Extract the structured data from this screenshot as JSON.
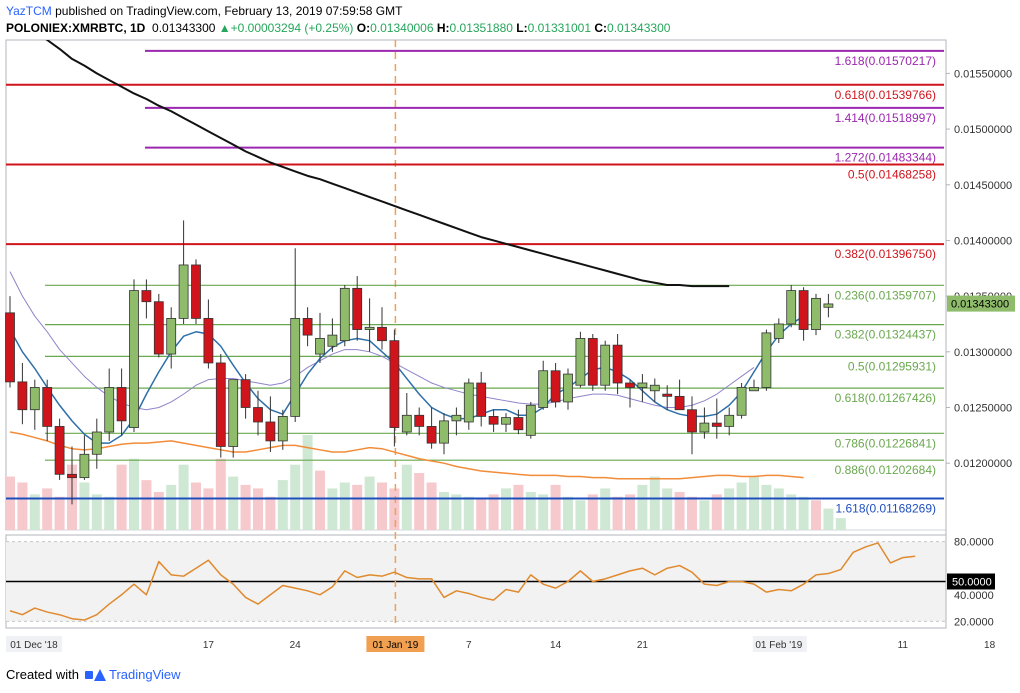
{
  "header": {
    "author": "YazTCM",
    "published": " published on TradingView.com, February 13, 2019 07:59:58 GMT",
    "symbol": "POLONIEX:XMRBTC, 1D",
    "last": "0.01343300",
    "change": "▲+0.00003294 (+0.25%)",
    "o_label": "O:",
    "o_value": "0.01340006",
    "h_label": "H:",
    "h_value": "0.01351880",
    "l_label": "L:",
    "l_value": "0.01331001",
    "c_label": "C:",
    "c_value": "0.01343300"
  },
  "footer": {
    "created_with": "Created with",
    "brand": "TradingView"
  },
  "chart_data": [
    {
      "type": "candlestick",
      "colors": {
        "up": "#8fbc6a",
        "down": "#d0141c",
        "price_line": "#8fbc6a"
      },
      "ylim": [
        0.0114,
        0.0158
      ],
      "y_ticks": [
        "0.01550000",
        "0.01500000",
        "0.01450000",
        "0.01400000",
        "0.01350000",
        "0.01300000",
        "0.01250000",
        "0.01200000"
      ],
      "current_price_label": "0.01343300",
      "x_ticks": [
        {
          "label": "01 Dec '18",
          "day": 0
        },
        {
          "label": "17",
          "day": 16
        },
        {
          "label": "24",
          "day": 23
        },
        {
          "label": "01 Jan '19",
          "day": 31
        },
        {
          "label": "7",
          "day": 37
        },
        {
          "label": "14",
          "day": 44
        },
        {
          "label": "21",
          "day": 51
        },
        {
          "label": "01 Feb '19",
          "day": 62
        },
        {
          "label": "11",
          "day": 72
        },
        {
          "label": "18",
          "day": 79
        }
      ],
      "candles": [
        {
          "d": 0,
          "o": 0.01335,
          "h": 0.0135,
          "l": 0.01268,
          "c": 0.01273
        },
        {
          "d": 1,
          "o": 0.01273,
          "h": 0.0129,
          "l": 0.01235,
          "c": 0.01248
        },
        {
          "d": 2,
          "o": 0.01248,
          "h": 0.01275,
          "l": 0.0123,
          "c": 0.01268
        },
        {
          "d": 3,
          "o": 0.01268,
          "h": 0.01275,
          "l": 0.0122,
          "c": 0.01233
        },
        {
          "d": 4,
          "o": 0.01233,
          "h": 0.0124,
          "l": 0.01185,
          "c": 0.0119
        },
        {
          "d": 5,
          "o": 0.0119,
          "h": 0.01215,
          "l": 0.01163,
          "c": 0.01187
        },
        {
          "d": 6,
          "o": 0.01187,
          "h": 0.01225,
          "l": 0.01185,
          "c": 0.01208
        },
        {
          "d": 7,
          "o": 0.01208,
          "h": 0.0124,
          "l": 0.01195,
          "c": 0.01228
        },
        {
          "d": 8,
          "o": 0.01228,
          "h": 0.01285,
          "l": 0.0122,
          "c": 0.01268
        },
        {
          "d": 9,
          "o": 0.01268,
          "h": 0.01285,
          "l": 0.01225,
          "c": 0.01238
        },
        {
          "d": 10,
          "o": 0.01232,
          "h": 0.01365,
          "l": 0.01228,
          "c": 0.01355
        },
        {
          "d": 11,
          "o": 0.01355,
          "h": 0.01365,
          "l": 0.0133,
          "c": 0.01345
        },
        {
          "d": 12,
          "o": 0.01345,
          "h": 0.01352,
          "l": 0.01295,
          "c": 0.01298
        },
        {
          "d": 13,
          "o": 0.01298,
          "h": 0.0134,
          "l": 0.01285,
          "c": 0.0133
        },
        {
          "d": 14,
          "o": 0.0133,
          "h": 0.01418,
          "l": 0.01325,
          "c": 0.01378
        },
        {
          "d": 15,
          "o": 0.01378,
          "h": 0.01383,
          "l": 0.01325,
          "c": 0.0133
        },
        {
          "d": 16,
          "o": 0.0133,
          "h": 0.01347,
          "l": 0.01285,
          "c": 0.0129
        },
        {
          "d": 17,
          "o": 0.0129,
          "h": 0.01298,
          "l": 0.01205,
          "c": 0.01215
        },
        {
          "d": 18,
          "o": 0.01215,
          "h": 0.01275,
          "l": 0.01205,
          "c": 0.01275
        },
        {
          "d": 19,
          "o": 0.01275,
          "h": 0.0128,
          "l": 0.0124,
          "c": 0.0125
        },
        {
          "d": 20,
          "o": 0.0125,
          "h": 0.01265,
          "l": 0.01225,
          "c": 0.01237
        },
        {
          "d": 21,
          "o": 0.01237,
          "h": 0.0126,
          "l": 0.0121,
          "c": 0.0122
        },
        {
          "d": 22,
          "o": 0.0122,
          "h": 0.01248,
          "l": 0.01212,
          "c": 0.01242
        },
        {
          "d": 23,
          "o": 0.01242,
          "h": 0.01393,
          "l": 0.01237,
          "c": 0.0133
        },
        {
          "d": 24,
          "o": 0.0133,
          "h": 0.0134,
          "l": 0.01305,
          "c": 0.01315
        },
        {
          "d": 25,
          "o": 0.01298,
          "h": 0.01335,
          "l": 0.0129,
          "c": 0.01312
        },
        {
          "d": 26,
          "o": 0.01305,
          "h": 0.0133,
          "l": 0.013,
          "c": 0.01315
        },
        {
          "d": 27,
          "o": 0.0131,
          "h": 0.0136,
          "l": 0.01305,
          "c": 0.01357
        },
        {
          "d": 28,
          "o": 0.01357,
          "h": 0.01368,
          "l": 0.0131,
          "c": 0.0132
        },
        {
          "d": 29,
          "o": 0.0132,
          "h": 0.01348,
          "l": 0.013,
          "c": 0.01322
        },
        {
          "d": 30,
          "o": 0.01322,
          "h": 0.0134,
          "l": 0.01302,
          "c": 0.0131
        },
        {
          "d": 31,
          "o": 0.0131,
          "h": 0.0132,
          "l": 0.01215,
          "c": 0.01232
        },
        {
          "d": 32,
          "o": 0.01228,
          "h": 0.01263,
          "l": 0.01225,
          "c": 0.01243
        },
        {
          "d": 33,
          "o": 0.01243,
          "h": 0.0125,
          "l": 0.01225,
          "c": 0.01233
        },
        {
          "d": 34,
          "o": 0.01233,
          "h": 0.0125,
          "l": 0.01213,
          "c": 0.01218
        },
        {
          "d": 35,
          "o": 0.01218,
          "h": 0.01245,
          "l": 0.01208,
          "c": 0.01238
        },
        {
          "d": 36,
          "o": 0.01238,
          "h": 0.0125,
          "l": 0.01225,
          "c": 0.01243
        },
        {
          "d": 37,
          "o": 0.01237,
          "h": 0.01276,
          "l": 0.0123,
          "c": 0.01272
        },
        {
          "d": 38,
          "o": 0.01272,
          "h": 0.01282,
          "l": 0.01233,
          "c": 0.01242
        },
        {
          "d": 39,
          "o": 0.01242,
          "h": 0.01248,
          "l": 0.01228,
          "c": 0.01235
        },
        {
          "d": 40,
          "o": 0.01235,
          "h": 0.01245,
          "l": 0.01228,
          "c": 0.01241
        },
        {
          "d": 41,
          "o": 0.01241,
          "h": 0.01248,
          "l": 0.01226,
          "c": 0.0123
        },
        {
          "d": 42,
          "o": 0.01225,
          "h": 0.01255,
          "l": 0.01222,
          "c": 0.01252
        },
        {
          "d": 43,
          "o": 0.0125,
          "h": 0.01292,
          "l": 0.01248,
          "c": 0.01283
        },
        {
          "d": 44,
          "o": 0.01283,
          "h": 0.0129,
          "l": 0.0125,
          "c": 0.01255
        },
        {
          "d": 45,
          "o": 0.01255,
          "h": 0.01285,
          "l": 0.01248,
          "c": 0.0128
        },
        {
          "d": 46,
          "o": 0.0127,
          "h": 0.01318,
          "l": 0.01268,
          "c": 0.01312
        },
        {
          "d": 47,
          "o": 0.01312,
          "h": 0.01316,
          "l": 0.01265,
          "c": 0.0127
        },
        {
          "d": 48,
          "o": 0.0127,
          "h": 0.0131,
          "l": 0.01265,
          "c": 0.01306
        },
        {
          "d": 49,
          "o": 0.01306,
          "h": 0.01316,
          "l": 0.01262,
          "c": 0.01272
        },
        {
          "d": 50,
          "o": 0.01272,
          "h": 0.01275,
          "l": 0.0125,
          "c": 0.01268
        },
        {
          "d": 51,
          "o": 0.01268,
          "h": 0.0128,
          "l": 0.01255,
          "c": 0.01272
        },
        {
          "d": 52,
          "o": 0.01265,
          "h": 0.01276,
          "l": 0.01255,
          "c": 0.0127
        },
        {
          "d": 53,
          "o": 0.01262,
          "h": 0.0127,
          "l": 0.01248,
          "c": 0.0126
        },
        {
          "d": 54,
          "o": 0.0126,
          "h": 0.01275,
          "l": 0.01248,
          "c": 0.01248
        },
        {
          "d": 55,
          "o": 0.01248,
          "h": 0.0126,
          "l": 0.01208,
          "c": 0.01228
        },
        {
          "d": 56,
          "o": 0.01228,
          "h": 0.0125,
          "l": 0.01222,
          "c": 0.01236
        },
        {
          "d": 57,
          "o": 0.01236,
          "h": 0.01258,
          "l": 0.01222,
          "c": 0.01233
        },
        {
          "d": 58,
          "o": 0.01233,
          "h": 0.0125,
          "l": 0.01225,
          "c": 0.01243
        },
        {
          "d": 59,
          "o": 0.01243,
          "h": 0.01272,
          "l": 0.0124,
          "c": 0.01268
        },
        {
          "d": 60,
          "o": 0.01265,
          "h": 0.01275,
          "l": 0.01265,
          "c": 0.01268
        },
        {
          "d": 61,
          "o": 0.01268,
          "h": 0.0132,
          "l": 0.01265,
          "c": 0.01317
        },
        {
          "d": 62,
          "o": 0.01312,
          "h": 0.0133,
          "l": 0.01308,
          "c": 0.01325
        },
        {
          "d": 63,
          "o": 0.01325,
          "h": 0.0136,
          "l": 0.01322,
          "c": 0.01355
        },
        {
          "d": 64,
          "o": 0.01355,
          "h": 0.01358,
          "l": 0.0131,
          "c": 0.0132
        },
        {
          "d": 65,
          "o": 0.0132,
          "h": 0.01352,
          "l": 0.01315,
          "c": 0.01348
        },
        {
          "d": 66,
          "o": 0.0134,
          "h": 0.01352,
          "l": 0.01331,
          "c": 0.01343
        }
      ]
    },
    {
      "type": "line",
      "name": "RSI",
      "ylim": [
        15,
        85
      ],
      "y_ticks": [
        "80.0000",
        "40.0000",
        "20.0000"
      ],
      "level": 50,
      "level_label": "50.0000",
      "values": [
        28,
        25,
        30,
        27,
        25,
        22,
        21,
        25,
        33,
        40,
        48,
        40,
        65,
        55,
        54,
        60,
        66,
        55,
        48,
        38,
        33,
        40,
        47,
        45,
        43,
        40,
        46,
        58,
        53,
        55,
        54,
        57,
        53,
        52,
        52,
        38,
        43,
        41,
        38,
        36,
        44,
        42,
        55,
        48,
        45,
        50,
        58,
        50,
        52,
        55,
        58,
        60,
        55,
        60,
        62,
        57,
        48,
        47,
        50,
        50,
        48,
        42,
        44,
        43,
        48,
        55,
        56,
        59,
        72,
        76,
        79,
        64,
        68,
        69
      ]
    },
    {
      "type": "line",
      "name": "SMA 100",
      "values": [
        0.01602,
        0.01595,
        0.01588,
        0.0158,
        0.01572,
        0.01563,
        0.01557,
        0.0155,
        0.01544,
        0.01538,
        0.01532,
        0.01527,
        0.01521,
        0.01516,
        0.0151,
        0.01504,
        0.01498,
        0.01492,
        0.01486,
        0.0148,
        0.01475,
        0.0147,
        0.01466,
        0.01462,
        0.01458,
        0.01455,
        0.01451,
        0.01447,
        0.01443,
        0.01439,
        0.01435,
        0.01431,
        0.01427,
        0.01423,
        0.01419,
        0.01415,
        0.01411,
        0.01407,
        0.01403,
        0.014,
        0.01397,
        0.01394,
        0.01391,
        0.01388,
        0.01385,
        0.01382,
        0.01379,
        0.01376,
        0.01373,
        0.0137,
        0.01367,
        0.01364,
        0.01362,
        0.0136,
        0.0136,
        0.01359,
        0.01359,
        0.01359,
        0.01359
      ]
    },
    {
      "type": "line",
      "name": "MA blue",
      "values": [
        0.0132,
        0.013,
        0.01285,
        0.01268,
        0.01252,
        0.01238,
        0.01226,
        0.01218,
        0.01218,
        0.01225,
        0.0124,
        0.01262,
        0.01282,
        0.013,
        0.01314,
        0.01318,
        0.01316,
        0.01305,
        0.01288,
        0.01272,
        0.01258,
        0.01248,
        0.01244,
        0.01262,
        0.0128,
        0.01294,
        0.01304,
        0.0131,
        0.01312,
        0.0131,
        0.013,
        0.0129,
        0.01276,
        0.01262,
        0.0125,
        0.01244,
        0.0124,
        0.0124,
        0.01244,
        0.01248,
        0.01248,
        0.01243,
        0.01243,
        0.0125,
        0.01262,
        0.01268,
        0.01276,
        0.01284,
        0.01286,
        0.01282,
        0.01275,
        0.01265,
        0.01255,
        0.01248,
        0.01244,
        0.01242,
        0.01242,
        0.01244,
        0.01252,
        0.01264,
        0.01282,
        0.013,
        0.01315,
        0.01325,
        0.01332
      ]
    },
    {
      "type": "line",
      "name": "MA purple",
      "values": [
        0.01372,
        0.0135,
        0.01332,
        0.01318,
        0.01302,
        0.0129,
        0.01278,
        0.01268,
        0.0126,
        0.01254,
        0.0125,
        0.01248,
        0.0125,
        0.01255,
        0.01262,
        0.0127,
        0.01275,
        0.01276,
        0.01276,
        0.01274,
        0.01272,
        0.0127,
        0.01272,
        0.01278,
        0.01286,
        0.01292,
        0.01298,
        0.01302,
        0.01302,
        0.013,
        0.01296,
        0.0129,
        0.01284,
        0.01278,
        0.01272,
        0.01268,
        0.01265,
        0.01262,
        0.0126,
        0.01258,
        0.01256,
        0.01254,
        0.01253,
        0.01253,
        0.01255,
        0.01258,
        0.0126,
        0.01262,
        0.01262,
        0.01261,
        0.01258,
        0.01255,
        0.01252,
        0.0125,
        0.0125,
        0.01252,
        0.01256,
        0.01262,
        0.0127,
        0.01278,
        0.01286
      ]
    },
    {
      "type": "line",
      "name": "MA orange",
      "values": [
        0.01228,
        0.01226,
        0.01223,
        0.0122,
        0.01216,
        0.01213,
        0.01212,
        0.01213,
        0.01215,
        0.01217,
        0.01218,
        0.01218,
        0.01219,
        0.0122,
        0.01218,
        0.01216,
        0.01214,
        0.01212,
        0.0121,
        0.0121,
        0.01212,
        0.01214,
        0.01216,
        0.01216,
        0.01214,
        0.01212,
        0.0121,
        0.0121,
        0.01212,
        0.01214,
        0.01213,
        0.0121,
        0.01207,
        0.01204,
        0.01202,
        0.012,
        0.01197,
        0.01195,
        0.01193,
        0.01192,
        0.01191,
        0.0119,
        0.01189,
        0.01189,
        0.01189,
        0.01188,
        0.01188,
        0.01187,
        0.01187,
        0.01186,
        0.01186,
        0.01186,
        0.01186,
        0.01186,
        0.01186,
        0.01187,
        0.01188,
        0.01189,
        0.01189,
        0.01188,
        0.01188,
        0.01189,
        0.01189,
        0.01188,
        0.01187
      ]
    },
    {
      "type": "bar",
      "name": "Volume",
      "values": [
        45,
        40,
        30,
        35,
        28,
        55,
        40,
        30,
        28,
        55,
        60,
        42,
        32,
        38,
        55,
        40,
        35,
        60,
        45,
        38,
        35,
        28,
        42,
        55,
        80,
        50,
        35,
        40,
        38,
        45,
        40,
        35,
        55,
        48,
        40,
        32,
        30,
        28,
        26,
        30,
        35,
        38,
        32,
        30,
        38,
        28,
        25,
        30,
        35,
        28,
        30,
        38,
        45,
        35,
        32,
        28,
        25,
        30,
        35,
        40,
        45,
        38,
        35,
        30,
        28,
        25,
        18,
        10
      ],
      "up": [
        false,
        false,
        true,
        false,
        false,
        false,
        true,
        true,
        true,
        false,
        true,
        false,
        false,
        true,
        true,
        false,
        false,
        false,
        true,
        false,
        false,
        false,
        true,
        true,
        true,
        false,
        true,
        true,
        false,
        true,
        false,
        false,
        true,
        false,
        false,
        true,
        true,
        true,
        false,
        false,
        true,
        false,
        true,
        true,
        false,
        true,
        true,
        false,
        true,
        false,
        false,
        true,
        true,
        true,
        false,
        false,
        true,
        false,
        true,
        true,
        true,
        true,
        true,
        true,
        true,
        false,
        true,
        true
      ]
    }
  ],
  "fib_levels": [
    {
      "label": "1.618(0.01570217)",
      "price": 0.01570217,
      "color": "#9c27b0"
    },
    {
      "label": "0.618(0.01539766)",
      "price": 0.01539766,
      "color": "#d0141c"
    },
    {
      "label": "1.414(0.01518997)",
      "price": 0.01518997,
      "color": "#9c27b0"
    },
    {
      "label": "1.272(0.01483344)",
      "price": 0.01483344,
      "color": "#9c27b0"
    },
    {
      "label": "0.5(0.01468258)",
      "price": 0.01468258,
      "color": "#d0141c"
    },
    {
      "label": "0.382(0.01396750)",
      "price": 0.0139675,
      "color": "#d0141c"
    },
    {
      "label": "0.236(0.01359707)",
      "price": 0.01359707,
      "color": "#6aa84f"
    },
    {
      "label": "0.382(0.01324437)",
      "price": 0.01324437,
      "color": "#6aa84f"
    },
    {
      "label": "0.5(0.01295931)",
      "price": 0.01295931,
      "color": "#6aa84f"
    },
    {
      "label": "0.618(0.01267426)",
      "price": 0.01267426,
      "color": "#6aa84f"
    },
    {
      "label": "0.786(0.01226841)",
      "price": 0.01226841,
      "color": "#6aa84f"
    },
    {
      "label": "0.886(0.01202684)",
      "price": 0.01202684,
      "color": "#6aa84f"
    },
    {
      "label": "1.618(0.01168269)",
      "price": 0.01168269,
      "color": "#1f4fbf"
    }
  ]
}
